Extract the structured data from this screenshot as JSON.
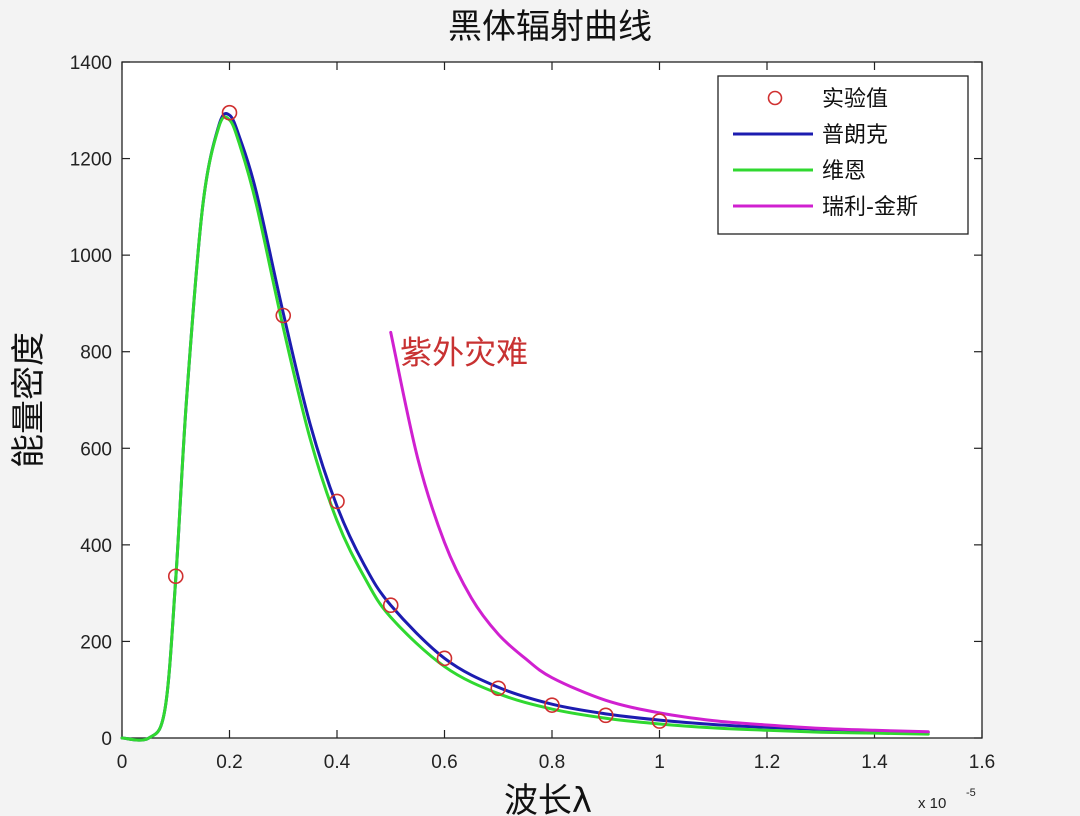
{
  "chart_data": {
    "type": "line",
    "title": "黑体辐射曲线",
    "xlabel": "波长λ",
    "ylabel": "能量密度",
    "x_exponent": "x 10",
    "x_exponent_power": "-5",
    "xlim": [
      0,
      1.6
    ],
    "ylim": [
      0,
      1400
    ],
    "x_ticks": [
      "0",
      "0.2",
      "0.4",
      "0.6",
      "0.8",
      "1",
      "1.2",
      "1.4",
      "1.6"
    ],
    "y_ticks": [
      "0",
      "200",
      "400",
      "600",
      "800",
      "1000",
      "1200",
      "1400"
    ],
    "grid": false,
    "legend_position": "top-right",
    "series": [
      {
        "name": "实验值",
        "style": "markers",
        "color": "#d03030",
        "x": [
          0.1,
          0.2,
          0.3,
          0.4,
          0.5,
          0.6,
          0.7,
          0.8,
          0.9,
          1.0
        ],
        "y": [
          335,
          1295,
          875,
          490,
          275,
          165,
          103,
          68,
          47,
          35
        ]
      },
      {
        "name": "普朗克",
        "style": "line",
        "color": "#1c1cb0",
        "x": [
          0.0,
          0.05,
          0.08,
          0.1,
          0.12,
          0.15,
          0.18,
          0.2,
          0.22,
          0.25,
          0.3,
          0.35,
          0.4,
          0.45,
          0.5,
          0.6,
          0.7,
          0.8,
          0.9,
          1.0,
          1.1,
          1.2,
          1.3,
          1.4,
          1.5
        ],
        "y": [
          0,
          0,
          60,
          330,
          700,
          1100,
          1268,
          1290,
          1240,
          1130,
          880,
          650,
          480,
          360,
          275,
          165,
          105,
          70,
          50,
          37,
          28,
          22,
          18,
          15,
          12
        ]
      },
      {
        "name": "维恩",
        "style": "line",
        "color": "#30d830",
        "x": [
          0.0,
          0.05,
          0.08,
          0.1,
          0.12,
          0.15,
          0.18,
          0.2,
          0.22,
          0.25,
          0.3,
          0.35,
          0.4,
          0.45,
          0.5,
          0.6,
          0.7,
          0.8,
          0.9,
          1.0,
          1.1,
          1.2,
          1.3,
          1.4,
          1.5
        ],
        "y": [
          0,
          0,
          60,
          330,
          700,
          1100,
          1265,
          1280,
          1225,
          1105,
          850,
          620,
          450,
          335,
          250,
          148,
          92,
          60,
          41,
          29,
          21,
          16,
          12,
          10,
          8
        ]
      },
      {
        "name": "瑞利-金斯",
        "style": "line",
        "color": "#d020d0",
        "x": [
          0.5,
          0.55,
          0.6,
          0.65,
          0.7,
          0.75,
          0.8,
          0.9,
          1.0,
          1.1,
          1.2,
          1.3,
          1.4,
          1.5
        ],
        "y": [
          840,
          580,
          405,
          290,
          215,
          165,
          125,
          78,
          52,
          36,
          27,
          20,
          16,
          13
        ]
      }
    ],
    "annotations": [
      {
        "text": "紫外灾难",
        "x": 0.51,
        "y": 800,
        "color": "#c83232"
      }
    ]
  }
}
